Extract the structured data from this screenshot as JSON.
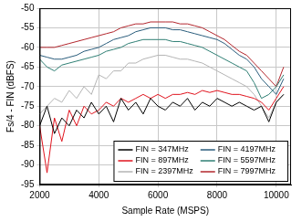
{
  "chart_data": {
    "type": "line",
    "x_label": "Sample Rate (MSPS)",
    "y_label": "Fs/4 - FIN (dBFS)",
    "x": [
      2000,
      2250,
      2500,
      2750,
      3000,
      3250,
      3500,
      3750,
      4000,
      4250,
      4500,
      4750,
      5000,
      5250,
      5500,
      5750,
      6000,
      6250,
      6500,
      6750,
      7000,
      7250,
      7500,
      7750,
      8000,
      8250,
      8500,
      8750,
      9000,
      9250,
      9500,
      9750,
      10000,
      10250
    ],
    "series": [
      {
        "name": "FIN = 347MHz",
        "color": "#000000",
        "values": [
          -80,
          -75,
          -82,
          -78,
          -80,
          -76,
          -78,
          -74,
          -77,
          -75,
          -79,
          -73,
          -76,
          -74,
          -77,
          -73,
          -75,
          -76,
          -74,
          -75,
          -73,
          -76,
          -74,
          -75,
          -73,
          -74,
          -75,
          -74,
          -75,
          -76,
          -75,
          -79,
          -74,
          -72
        ]
      },
      {
        "name": "FIN = 897MHz",
        "color": "#e0141e",
        "values": [
          -80,
          -92,
          -78,
          -84,
          -76,
          -80,
          -75,
          -77,
          -76,
          -74,
          -75,
          -73,
          -74,
          -73,
          -72,
          -73,
          -72,
          -73,
          -72,
          -72,
          -71.5,
          -72,
          -71,
          -71.5,
          -71,
          -71.5,
          -72,
          -72,
          -72.5,
          -73,
          -74,
          -76,
          -73,
          -70
        ]
      },
      {
        "name": "FIN = 2397MHz",
        "color": "#b4b4b4",
        "values": [
          -77,
          -75,
          -73,
          -74,
          -71,
          -73,
          -70,
          -72,
          -67,
          -68,
          -66,
          -66,
          -64,
          -64,
          -63,
          -62.5,
          -62,
          -62,
          -62.5,
          -63,
          -63,
          -63.5,
          -64,
          -65,
          -66,
          -67,
          -68,
          -69,
          -70,
          -72,
          -75,
          -78,
          -74,
          -72
        ]
      },
      {
        "name": "FIN = 4197MHz",
        "color": "#2a5d7c",
        "values": [
          -62,
          -62.5,
          -63,
          -63,
          -62.5,
          -62,
          -61,
          -60.5,
          -60,
          -59,
          -58,
          -57.5,
          -57,
          -56,
          -55.5,
          -55,
          -55,
          -55,
          -55.5,
          -55.5,
          -56,
          -56.5,
          -57,
          -57.5,
          -58,
          -59,
          -60.5,
          -62,
          -63,
          -65,
          -68,
          -70,
          -72,
          -68
        ]
      },
      {
        "name": "FIN = 5597MHz",
        "color": "#2f7f74",
        "values": [
          -63,
          -65,
          -66,
          -64.5,
          -64,
          -63.5,
          -63,
          -62.5,
          -62,
          -61,
          -60.5,
          -60,
          -59,
          -58.5,
          -58,
          -58,
          -58,
          -58,
          -58.5,
          -58.5,
          -59,
          -59.5,
          -60,
          -61,
          -62,
          -63,
          -64,
          -65,
          -66,
          -69,
          -73,
          -72,
          -70,
          -67
        ]
      },
      {
        "name": "FIN = 7997MHz",
        "color": "#b3262d",
        "values": [
          -60,
          -60,
          -60,
          -59.5,
          -59,
          -58.5,
          -58,
          -57.5,
          -57,
          -56.5,
          -56,
          -55,
          -54.5,
          -54,
          -54,
          -53.5,
          -53.5,
          -53.5,
          -53.5,
          -54,
          -54,
          -54.5,
          -55,
          -56,
          -57,
          -58,
          -59.5,
          -61,
          -62,
          -64,
          -66,
          -68,
          -70,
          -65
        ]
      }
    ],
    "xlim": [
      2000,
      10500
    ],
    "xticks": [
      2000,
      4000,
      6000,
      8000,
      10000
    ],
    "ylim": [
      -95,
      -50
    ],
    "yticks": [
      -95,
      -90,
      -85,
      -80,
      -75,
      -70,
      -65,
      -60,
      -55,
      -50
    ],
    "grid": true,
    "legend": "lower right",
    "marker": "none"
  }
}
